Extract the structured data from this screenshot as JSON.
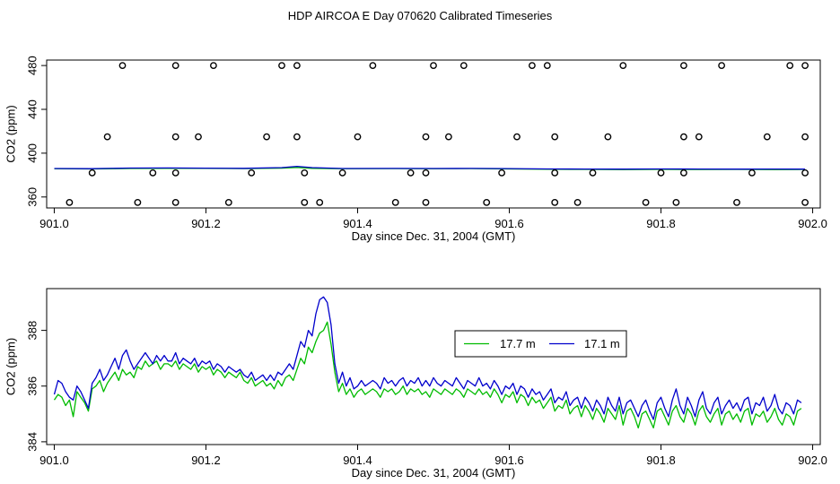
{
  "figure": {
    "title": "HDP AIRCOA E  Day 070620  Calibrated Timeseries"
  },
  "chart_data": [
    {
      "type": "scatter",
      "xlabel": "Day since Dec. 31, 2004 (GMT)",
      "ylabel": "CO2 (ppm)",
      "xlim": [
        900.99,
        902.01
      ],
      "ylim": [
        350,
        485
      ],
      "xticks": [
        {
          "value": 901.0,
          "label": "901.0"
        },
        {
          "value": 901.2,
          "label": "901.2"
        },
        {
          "value": 901.4,
          "label": "901.4"
        },
        {
          "value": 901.6,
          "label": "901.6"
        },
        {
          "value": 901.8,
          "label": "901.8"
        },
        {
          "value": 902.0,
          "label": "902.0"
        }
      ],
      "yticks": [
        {
          "value": 360,
          "label": "360"
        },
        {
          "value": 400,
          "label": "400"
        },
        {
          "value": 440,
          "label": "440"
        },
        {
          "value": 480,
          "label": "480"
        }
      ],
      "grid": false,
      "points": {
        "color": "#000000",
        "x": [
          901.09,
          901.16,
          901.21,
          901.3,
          901.32,
          901.42,
          901.5,
          901.54,
          901.63,
          901.65,
          901.75,
          901.83,
          901.88,
          901.97,
          901.99,
          901.07,
          901.16,
          901.19,
          901.28,
          901.32,
          901.4,
          901.49,
          901.52,
          901.61,
          901.66,
          901.73,
          901.83,
          901.85,
          901.94,
          901.99,
          901.05,
          901.13,
          901.16,
          901.26,
          901.33,
          901.38,
          901.47,
          901.49,
          901.59,
          901.66,
          901.71,
          901.8,
          901.83,
          901.92,
          901.99,
          901.02,
          901.11,
          901.16,
          901.23,
          901.33,
          901.35,
          901.45,
          901.49,
          901.57,
          901.66,
          901.69,
          901.78,
          901.82,
          901.9,
          901.99
        ],
        "y": [
          480,
          480,
          480,
          480,
          480,
          480,
          480,
          480,
          480,
          480,
          480,
          480,
          480,
          480,
          480,
          415,
          415,
          415,
          415,
          415,
          415,
          415,
          415,
          415,
          415,
          415,
          415,
          415,
          415,
          415,
          382,
          382,
          382,
          382,
          382,
          382,
          382,
          382,
          382,
          382,
          382,
          382,
          382,
          382,
          382,
          355,
          355,
          355,
          355,
          355,
          355,
          355,
          355,
          355,
          355,
          355,
          355,
          355,
          355,
          355
        ]
      },
      "series": [
        {
          "color": "#00bb00",
          "x": [
            901.0,
            901.05,
            901.1,
            901.15,
            901.2,
            901.25,
            901.3,
            901.32,
            901.34,
            901.38,
            901.45,
            901.5,
            901.55,
            901.6,
            901.65,
            901.7,
            901.75,
            901.8,
            901.85,
            901.9,
            901.95,
            901.99
          ],
          "values": [
            385.8,
            385.6,
            386.0,
            386.2,
            386.1,
            385.9,
            386.3,
            387.0,
            386.2,
            385.8,
            385.9,
            385.8,
            385.9,
            385.6,
            385.3,
            385.2,
            385.0,
            385.2,
            385.1,
            385.2,
            385.0,
            385.2
          ]
        },
        {
          "color": "#0000cc",
          "x": [
            901.0,
            901.05,
            901.1,
            901.15,
            901.2,
            901.25,
            901.3,
            901.32,
            901.34,
            901.38,
            901.45,
            901.5,
            901.55,
            901.6,
            901.65,
            901.7,
            901.75,
            901.8,
            901.85,
            901.9,
            901.95,
            901.99
          ],
          "values": [
            386.0,
            385.8,
            386.4,
            386.5,
            386.3,
            386.2,
            386.8,
            388.0,
            386.8,
            386.0,
            386.1,
            386.0,
            386.1,
            385.9,
            385.6,
            385.5,
            385.4,
            385.6,
            385.5,
            385.4,
            385.5,
            385.4
          ]
        }
      ]
    },
    {
      "type": "line",
      "xlabel": "Day since Dec. 31, 2004 (GMT)",
      "ylabel": "CO2 (ppm)",
      "xlim": [
        900.99,
        902.01
      ],
      "ylim": [
        383.9,
        389.5
      ],
      "xticks": [
        {
          "value": 901.0,
          "label": "901.0"
        },
        {
          "value": 901.2,
          "label": "901.2"
        },
        {
          "value": 901.4,
          "label": "901.4"
        },
        {
          "value": 901.6,
          "label": "901.6"
        },
        {
          "value": 901.8,
          "label": "901.8"
        },
        {
          "value": 902.0,
          "label": "902.0"
        }
      ],
      "yticks": [
        {
          "value": 384,
          "label": "384"
        },
        {
          "value": 386,
          "label": "386"
        },
        {
          "value": 388,
          "label": "388"
        }
      ],
      "grid": false,
      "legend": "top-right",
      "x": [
        901.0,
        901.005,
        901.01,
        901.015,
        901.02,
        901.025,
        901.03,
        901.035,
        901.04,
        901.045,
        901.05,
        901.055,
        901.06,
        901.065,
        901.07,
        901.075,
        901.08,
        901.085,
        901.09,
        901.095,
        901.1,
        901.105,
        901.11,
        901.115,
        901.12,
        901.125,
        901.13,
        901.135,
        901.14,
        901.145,
        901.15,
        901.155,
        901.16,
        901.165,
        901.17,
        901.175,
        901.18,
        901.185,
        901.19,
        901.195,
        901.2,
        901.205,
        901.21,
        901.215,
        901.22,
        901.225,
        901.23,
        901.235,
        901.24,
        901.245,
        901.25,
        901.255,
        901.26,
        901.265,
        901.27,
        901.275,
        901.28,
        901.285,
        901.29,
        901.295,
        901.3,
        901.305,
        901.31,
        901.315,
        901.32,
        901.325,
        901.33,
        901.335,
        901.34,
        901.345,
        901.35,
        901.355,
        901.36,
        901.365,
        901.37,
        901.375,
        901.38,
        901.385,
        901.39,
        901.395,
        901.4,
        901.405,
        901.41,
        901.415,
        901.42,
        901.425,
        901.43,
        901.435,
        901.44,
        901.445,
        901.45,
        901.455,
        901.46,
        901.465,
        901.47,
        901.475,
        901.48,
        901.485,
        901.49,
        901.495,
        901.5,
        901.505,
        901.51,
        901.515,
        901.52,
        901.525,
        901.53,
        901.535,
        901.54,
        901.545,
        901.55,
        901.555,
        901.56,
        901.565,
        901.57,
        901.575,
        901.58,
        901.585,
        901.59,
        901.595,
        901.6,
        901.605,
        901.61,
        901.615,
        901.62,
        901.625,
        901.63,
        901.635,
        901.64,
        901.645,
        901.65,
        901.655,
        901.66,
        901.665,
        901.67,
        901.675,
        901.68,
        901.685,
        901.69,
        901.695,
        901.7,
        901.705,
        901.71,
        901.715,
        901.72,
        901.725,
        901.73,
        901.735,
        901.74,
        901.745,
        901.75,
        901.755,
        901.76,
        901.765,
        901.77,
        901.775,
        901.78,
        901.785,
        901.79,
        901.795,
        901.8,
        901.805,
        901.81,
        901.815,
        901.82,
        901.825,
        901.83,
        901.835,
        901.84,
        901.845,
        901.85,
        901.855,
        901.86,
        901.865,
        901.87,
        901.875,
        901.88,
        901.885,
        901.89,
        901.895,
        901.9,
        901.905,
        901.91,
        901.915,
        901.92,
        901.925,
        901.93,
        901.935,
        901.94,
        901.945,
        901.95,
        901.955,
        901.96,
        901.965,
        901.97,
        901.975,
        901.98,
        901.985
      ],
      "series": [
        {
          "name": "17.7 m",
          "color": "#00bb00",
          "values": [
            385.5,
            385.7,
            385.6,
            385.3,
            385.5,
            384.9,
            385.8,
            385.6,
            385.4,
            385.1,
            385.9,
            386.0,
            386.2,
            385.8,
            386.1,
            386.3,
            386.5,
            386.2,
            386.6,
            386.4,
            386.5,
            386.3,
            386.7,
            386.6,
            386.9,
            386.7,
            386.8,
            386.9,
            386.6,
            386.8,
            386.8,
            386.7,
            386.9,
            386.6,
            386.8,
            386.7,
            386.6,
            386.8,
            386.5,
            386.7,
            386.6,
            386.7,
            386.4,
            386.6,
            386.5,
            386.3,
            386.5,
            386.4,
            386.3,
            386.5,
            386.2,
            386.1,
            386.3,
            386.0,
            386.1,
            386.2,
            386.0,
            386.1,
            385.9,
            386.2,
            386.0,
            386.3,
            386.4,
            386.2,
            386.6,
            387.0,
            386.8,
            387.4,
            387.2,
            387.6,
            387.9,
            388.0,
            388.3,
            387.5,
            386.5,
            385.8,
            386.1,
            385.7,
            385.9,
            385.6,
            385.8,
            385.9,
            385.7,
            385.8,
            385.9,
            385.8,
            385.6,
            385.9,
            385.8,
            385.9,
            385.7,
            385.8,
            386.0,
            385.7,
            385.9,
            385.8,
            385.9,
            385.7,
            385.8,
            385.6,
            385.9,
            385.8,
            385.7,
            385.9,
            385.8,
            385.7,
            385.9,
            385.8,
            385.6,
            385.9,
            385.8,
            385.7,
            385.9,
            385.7,
            385.8,
            385.6,
            385.9,
            385.7,
            385.4,
            385.7,
            385.6,
            385.8,
            385.4,
            385.7,
            385.6,
            385.3,
            385.6,
            385.4,
            385.5,
            385.2,
            385.4,
            385.6,
            385.1,
            385.3,
            385.2,
            385.5,
            385.0,
            385.2,
            385.3,
            384.9,
            385.3,
            385.1,
            384.8,
            385.2,
            385.0,
            384.7,
            385.2,
            385.0,
            384.8,
            385.3,
            384.6,
            385.1,
            385.2,
            384.9,
            384.5,
            385.0,
            385.1,
            384.8,
            384.5,
            385.1,
            385.2,
            384.9,
            384.6,
            385.1,
            385.3,
            384.9,
            384.7,
            385.2,
            385.0,
            384.6,
            385.1,
            385.3,
            384.9,
            384.7,
            385.0,
            385.2,
            384.6,
            385.0,
            385.1,
            384.8,
            385.0,
            384.7,
            385.1,
            385.2,
            384.6,
            385.0,
            384.9,
            385.1,
            384.7,
            384.9,
            385.2,
            384.8,
            384.6,
            385.0,
            384.9,
            384.6,
            385.1,
            385.2
          ]
        },
        {
          "name": "17.1 m",
          "color": "#0000cc",
          "values": [
            385.7,
            386.2,
            386.1,
            385.8,
            385.6,
            385.5,
            386.0,
            385.8,
            385.5,
            385.2,
            386.1,
            386.3,
            386.6,
            386.2,
            386.4,
            386.7,
            387.0,
            386.6,
            387.1,
            387.3,
            386.9,
            386.6,
            386.8,
            387.0,
            387.2,
            387.0,
            386.8,
            387.1,
            386.9,
            387.1,
            386.9,
            386.9,
            387.2,
            386.8,
            387.0,
            386.9,
            386.8,
            387.0,
            386.7,
            386.9,
            386.8,
            386.9,
            386.6,
            386.8,
            386.7,
            386.5,
            386.7,
            386.6,
            386.5,
            386.6,
            386.4,
            386.3,
            386.5,
            386.2,
            386.3,
            386.4,
            386.2,
            386.4,
            386.2,
            386.5,
            386.4,
            386.6,
            386.8,
            386.6,
            387.1,
            387.6,
            387.4,
            388.0,
            387.8,
            388.6,
            389.1,
            389.2,
            389.0,
            388.2,
            386.8,
            386.1,
            386.5,
            386.0,
            386.3,
            385.9,
            386.0,
            386.2,
            386.0,
            386.1,
            386.2,
            386.1,
            385.9,
            386.3,
            386.1,
            386.2,
            386.0,
            386.2,
            386.3,
            386.0,
            386.2,
            386.1,
            386.3,
            386.0,
            386.2,
            386.0,
            386.3,
            386.1,
            386.0,
            386.2,
            386.1,
            386.0,
            386.3,
            386.1,
            385.9,
            386.2,
            386.1,
            386.0,
            386.3,
            386.0,
            386.1,
            385.9,
            386.2,
            386.0,
            385.7,
            386.0,
            385.9,
            386.1,
            385.7,
            386.0,
            385.9,
            385.6,
            385.9,
            385.7,
            385.8,
            385.5,
            385.7,
            385.9,
            385.4,
            385.6,
            385.5,
            385.8,
            385.3,
            385.5,
            385.6,
            385.2,
            385.6,
            385.4,
            385.1,
            385.5,
            385.3,
            385.0,
            385.6,
            385.3,
            385.1,
            385.6,
            385.0,
            385.4,
            385.5,
            385.2,
            384.9,
            385.3,
            385.5,
            385.1,
            384.8,
            385.4,
            385.6,
            385.2,
            384.9,
            385.5,
            385.9,
            385.3,
            385.0,
            385.6,
            385.3,
            384.9,
            385.5,
            385.8,
            385.2,
            385.0,
            385.4,
            385.6,
            385.0,
            385.3,
            385.5,
            385.2,
            385.4,
            385.1,
            385.5,
            385.6,
            385.0,
            385.4,
            385.3,
            385.6,
            385.1,
            385.3,
            385.7,
            385.2,
            385.0,
            385.4,
            385.3,
            385.0,
            385.5,
            385.4
          ]
        }
      ]
    }
  ]
}
